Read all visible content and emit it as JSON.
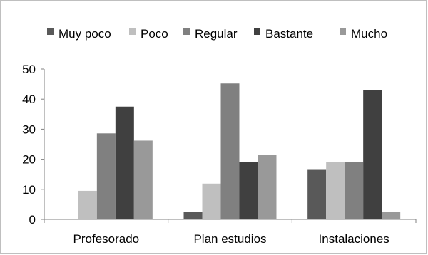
{
  "chart_data": {
    "type": "bar",
    "categories": [
      "Profesorado",
      "Plan estudios",
      "Instalaciones"
    ],
    "series": [
      {
        "name": "Muy poco",
        "color": "#595959",
        "values": [
          0,
          2.4,
          16.7
        ]
      },
      {
        "name": "Poco",
        "color": "#bfbfbf",
        "values": [
          9.5,
          11.9,
          19.0
        ]
      },
      {
        "name": "Regular",
        "color": "#808080",
        "values": [
          28.6,
          45.2,
          19.0
        ]
      },
      {
        "name": "Bastante",
        "color": "#404040",
        "values": [
          37.5,
          19.0,
          42.9
        ]
      },
      {
        "name": "Mucho",
        "color": "#999999",
        "values": [
          26.2,
          21.4,
          2.4
        ]
      }
    ],
    "ylim": [
      0,
      50
    ],
    "yticks": [
      0,
      10,
      20,
      30,
      40,
      50
    ],
    "grid": false,
    "legend_position": "top"
  }
}
